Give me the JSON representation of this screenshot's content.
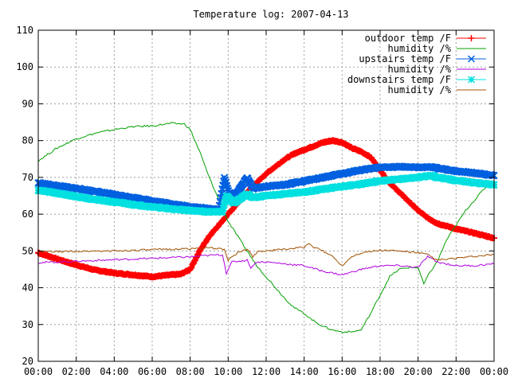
{
  "chart_data": {
    "type": "line",
    "title": "Temperature log: 2007-04-13",
    "xlabel": "",
    "ylabel": "",
    "ylim": [
      20,
      110
    ],
    "xlim": [
      "00:00",
      "24:00"
    ],
    "grid": true,
    "legend_position": "top-right",
    "x_ticks": [
      "00:00",
      "02:00",
      "04:00",
      "06:00",
      "08:00",
      "10:00",
      "12:00",
      "14:00",
      "16:00",
      "18:00",
      "20:00",
      "22:00",
      "00:00"
    ],
    "y_ticks": [
      "20",
      "30",
      "40",
      "50",
      "60",
      "70",
      "80",
      "90",
      "100",
      "110"
    ],
    "series": [
      {
        "name": "outdoor temp /F",
        "color": "#ff0000",
        "marker": "plus",
        "points": [
          [
            0,
            49.5
          ],
          [
            1,
            47.8
          ],
          [
            2,
            46.2
          ],
          [
            3,
            44.8
          ],
          [
            4,
            44.0
          ],
          [
            5,
            43.5
          ],
          [
            6,
            43.0
          ],
          [
            7,
            43.5
          ],
          [
            7.5,
            43.7
          ],
          [
            8,
            45.0
          ],
          [
            8.5,
            50.0
          ],
          [
            9,
            54.0
          ],
          [
            9.5,
            57.0
          ],
          [
            10,
            60.0
          ],
          [
            10.5,
            63.0
          ],
          [
            11,
            66.0
          ],
          [
            11.5,
            68.5
          ],
          [
            12,
            71.0
          ],
          [
            12.5,
            73.0
          ],
          [
            13,
            75.0
          ],
          [
            13.5,
            76.5
          ],
          [
            14,
            77.5
          ],
          [
            14.5,
            78.5
          ],
          [
            15,
            79.5
          ],
          [
            15.5,
            80.0
          ],
          [
            16,
            79.5
          ],
          [
            16.5,
            78.0
          ],
          [
            17,
            77.0
          ],
          [
            17.5,
            75.5
          ],
          [
            18,
            72.0
          ],
          [
            18.5,
            68.5
          ],
          [
            19,
            66.0
          ],
          [
            19.5,
            63.5
          ],
          [
            20,
            61.0
          ],
          [
            20.5,
            59.0
          ],
          [
            21,
            57.5
          ],
          [
            22,
            56.0
          ],
          [
            23,
            54.8
          ],
          [
            24,
            53.5
          ]
        ]
      },
      {
        "name": "humidity /%",
        "color": "#00a000",
        "marker": "none",
        "points": [
          [
            0,
            74.5
          ],
          [
            1,
            78.0
          ],
          [
            2,
            80.5
          ],
          [
            3,
            82.0
          ],
          [
            4,
            83.0
          ],
          [
            5,
            83.8
          ],
          [
            6,
            84.0
          ],
          [
            7,
            84.7
          ],
          [
            7.7,
            84.5
          ],
          [
            8,
            83.0
          ],
          [
            8.5,
            77.0
          ],
          [
            9,
            70.0
          ],
          [
            9.5,
            64.0
          ],
          [
            10,
            58.0
          ],
          [
            10.5,
            54.0
          ],
          [
            11,
            50.0
          ],
          [
            11.5,
            46.0
          ],
          [
            12,
            43.0
          ],
          [
            12.5,
            40.0
          ],
          [
            13,
            37.0
          ],
          [
            13.5,
            34.5
          ],
          [
            14,
            33.0
          ],
          [
            14.5,
            31.0
          ],
          [
            15,
            29.5
          ],
          [
            15.5,
            28.5
          ],
          [
            16,
            28.0
          ],
          [
            16.5,
            28.0
          ],
          [
            17,
            28.5
          ],
          [
            17.5,
            33.0
          ],
          [
            18,
            38.0
          ],
          [
            18.5,
            43.0
          ],
          [
            19,
            45.0
          ],
          [
            19.5,
            45.5
          ],
          [
            20,
            45.5
          ],
          [
            20.3,
            41.0
          ],
          [
            20.6,
            44.0
          ],
          [
            21,
            47.0
          ],
          [
            21.5,
            53.0
          ],
          [
            22,
            57.0
          ],
          [
            22.5,
            61.0
          ],
          [
            23,
            64.0
          ],
          [
            23.5,
            67.0
          ],
          [
            24,
            69.0
          ]
        ]
      },
      {
        "name": "upstairs temp /F",
        "color": "#0060e0",
        "marker": "x",
        "points": [
          [
            0,
            68.5
          ],
          [
            1,
            67.7
          ],
          [
            2,
            67.0
          ],
          [
            3,
            66.2
          ],
          [
            4,
            65.3
          ],
          [
            5,
            64.5
          ],
          [
            6,
            63.6
          ],
          [
            7,
            62.8
          ],
          [
            8,
            62.0
          ],
          [
            9,
            61.5
          ],
          [
            9.5,
            61.3
          ],
          [
            9.8,
            70.0
          ],
          [
            10.1,
            65.0
          ],
          [
            10.5,
            66.0
          ],
          [
            11,
            70.0
          ],
          [
            11.3,
            67.0
          ],
          [
            12,
            67.5
          ],
          [
            13,
            68.0
          ],
          [
            14,
            69.0
          ],
          [
            15,
            70.0
          ],
          [
            16,
            71.0
          ],
          [
            17,
            72.0
          ],
          [
            18,
            72.7
          ],
          [
            19,
            72.9
          ],
          [
            20,
            72.7
          ],
          [
            20.7,
            72.8
          ],
          [
            21,
            72.5
          ],
          [
            22,
            71.7
          ],
          [
            23,
            71.2
          ],
          [
            24,
            70.5
          ]
        ]
      },
      {
        "name": "humidity /%",
        "color": "#b000e0",
        "marker": "none",
        "points": [
          [
            0,
            46.8
          ],
          [
            1,
            47.0
          ],
          [
            2,
            47.2
          ],
          [
            3,
            47.4
          ],
          [
            4,
            47.6
          ],
          [
            5,
            47.8
          ],
          [
            6,
            48.0
          ],
          [
            7,
            48.2
          ],
          [
            8,
            48.4
          ],
          [
            9,
            48.8
          ],
          [
            9.7,
            49.0
          ],
          [
            9.9,
            44.0
          ],
          [
            10.2,
            47.0
          ],
          [
            11,
            47.5
          ],
          [
            11.2,
            45.5
          ],
          [
            11.5,
            47.0
          ],
          [
            12,
            47.0
          ],
          [
            13,
            46.5
          ],
          [
            14,
            46.0
          ],
          [
            15,
            44.5
          ],
          [
            16,
            43.5
          ],
          [
            17,
            45.0
          ],
          [
            18,
            46.0
          ],
          [
            19,
            46.0
          ],
          [
            20,
            45.5
          ],
          [
            20.5,
            48.5
          ],
          [
            21,
            47.0
          ],
          [
            22,
            46.0
          ],
          [
            23,
            46.0
          ],
          [
            24,
            46.5
          ]
        ]
      },
      {
        "name": "downstairs temp /F",
        "color": "#00e0e0",
        "marker": "star",
        "points": [
          [
            0,
            66.5
          ],
          [
            1,
            65.7
          ],
          [
            2,
            64.8
          ],
          [
            3,
            64.0
          ],
          [
            4,
            63.3
          ],
          [
            5,
            62.6
          ],
          [
            6,
            62.0
          ],
          [
            7,
            61.4
          ],
          [
            8,
            61.0
          ],
          [
            9,
            60.6
          ],
          [
            9.7,
            60.7
          ],
          [
            9.9,
            65.0
          ],
          [
            10.3,
            63.0
          ],
          [
            11,
            65.5
          ],
          [
            11.3,
            64.5
          ],
          [
            12,
            65.0
          ],
          [
            13,
            65.5
          ],
          [
            14,
            66.0
          ],
          [
            15,
            66.8
          ],
          [
            16,
            67.5
          ],
          [
            17,
            68.2
          ],
          [
            18,
            69.0
          ],
          [
            19,
            69.5
          ],
          [
            20,
            70.0
          ],
          [
            20.7,
            70.5
          ],
          [
            21,
            70.0
          ],
          [
            22,
            69.2
          ],
          [
            23,
            68.5
          ],
          [
            24,
            68.0
          ]
        ]
      },
      {
        "name": "humidity /%",
        "color": "#a05000",
        "marker": "none",
        "points": [
          [
            0,
            49.8
          ],
          [
            1,
            49.8
          ],
          [
            2,
            49.9
          ],
          [
            3,
            50.0
          ],
          [
            4,
            50.0
          ],
          [
            5,
            50.2
          ],
          [
            6,
            50.3
          ],
          [
            7,
            50.5
          ],
          [
            8,
            50.6
          ],
          [
            9,
            50.8
          ],
          [
            9.8,
            50.5
          ],
          [
            10,
            47.5
          ],
          [
            10.5,
            49.5
          ],
          [
            11,
            50.5
          ],
          [
            11.3,
            48.5
          ],
          [
            11.6,
            50.0
          ],
          [
            12,
            50.0
          ],
          [
            13,
            50.5
          ],
          [
            14,
            51.0
          ],
          [
            14.2,
            52.0
          ],
          [
            14.5,
            51.0
          ],
          [
            15,
            50.0
          ],
          [
            15.5,
            48.5
          ],
          [
            16,
            46.0
          ],
          [
            16.5,
            48.5
          ],
          [
            17,
            49.5
          ],
          [
            18,
            50.2
          ],
          [
            19,
            50.0
          ],
          [
            20,
            49.5
          ],
          [
            20.5,
            49.0
          ],
          [
            21,
            47.5
          ],
          [
            22,
            48.0
          ],
          [
            23,
            48.5
          ],
          [
            24,
            49.0
          ]
        ]
      }
    ]
  }
}
